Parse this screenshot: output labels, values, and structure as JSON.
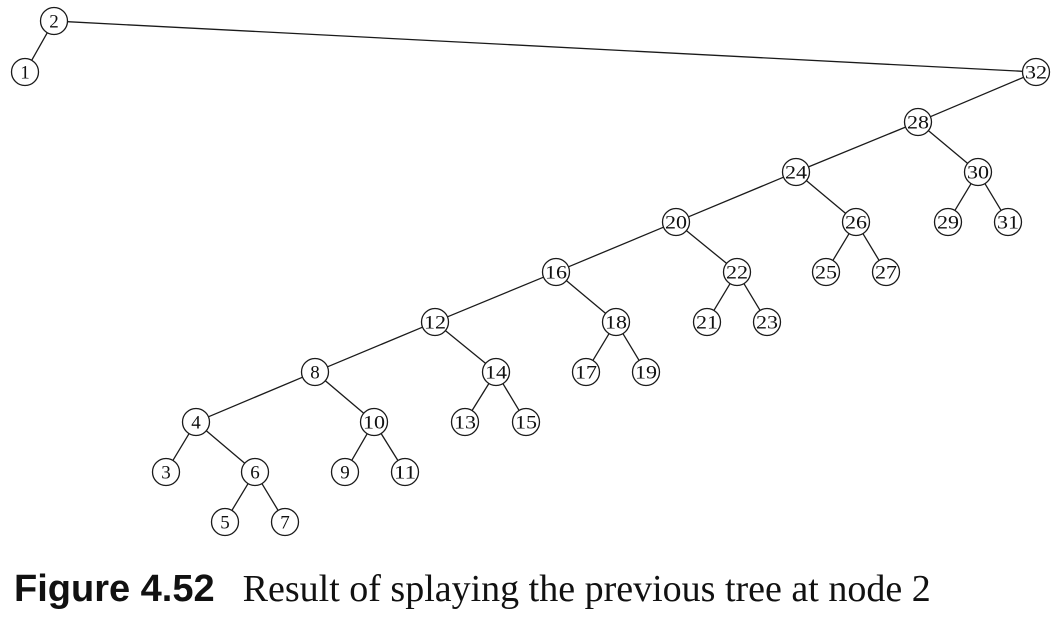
{
  "diagram": {
    "type": "binary-tree",
    "root": "2",
    "nodes": [
      "1",
      "2",
      "3",
      "4",
      "5",
      "6",
      "7",
      "8",
      "9",
      "10",
      "11",
      "12",
      "13",
      "14",
      "15",
      "16",
      "17",
      "18",
      "19",
      "20",
      "21",
      "22",
      "23",
      "24",
      "25",
      "26",
      "27",
      "28",
      "29",
      "30",
      "31",
      "32"
    ],
    "edges": [
      [
        "2",
        "1"
      ],
      [
        "2",
        "32"
      ],
      [
        "32",
        "28"
      ],
      [
        "28",
        "24"
      ],
      [
        "28",
        "30"
      ],
      [
        "30",
        "29"
      ],
      [
        "30",
        "31"
      ],
      [
        "24",
        "20"
      ],
      [
        "24",
        "26"
      ],
      [
        "26",
        "25"
      ],
      [
        "26",
        "27"
      ],
      [
        "20",
        "16"
      ],
      [
        "20",
        "22"
      ],
      [
        "22",
        "21"
      ],
      [
        "22",
        "23"
      ],
      [
        "16",
        "12"
      ],
      [
        "16",
        "18"
      ],
      [
        "18",
        "17"
      ],
      [
        "18",
        "19"
      ],
      [
        "12",
        "8"
      ],
      [
        "12",
        "14"
      ],
      [
        "14",
        "13"
      ],
      [
        "14",
        "15"
      ],
      [
        "8",
        "4"
      ],
      [
        "8",
        "10"
      ],
      [
        "10",
        "9"
      ],
      [
        "10",
        "11"
      ],
      [
        "4",
        "3"
      ],
      [
        "4",
        "6"
      ],
      [
        "6",
        "5"
      ],
      [
        "6",
        "7"
      ]
    ]
  },
  "caption": {
    "label": "Figure 4.52",
    "text": "Result of splaying the previous tree at node 2"
  }
}
